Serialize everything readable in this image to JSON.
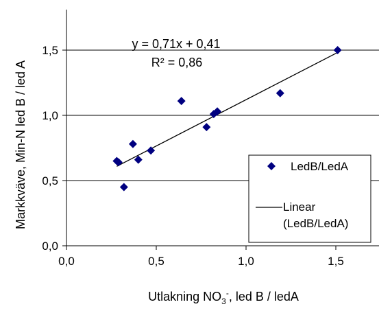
{
  "chart_data": {
    "type": "scatter",
    "title": "",
    "xlabel": {
      "base": "Utlakning NO",
      "sub": "3",
      "sup": "-",
      "rest": ", led B / ledA"
    },
    "ylabel": "Markkväve, Min-N led B / led A",
    "xlim": [
      0,
      1.75
    ],
    "ylim": [
      0,
      1.8
    ],
    "x_ticks": [
      0,
      0.5,
      1.0,
      1.5
    ],
    "x_tick_labels": [
      "0,0",
      "0,5",
      "1,0",
      "1,5"
    ],
    "y_ticks": [
      0,
      0.5,
      1.0,
      1.5
    ],
    "y_tick_labels": [
      "0,0",
      "0,5",
      "1,0",
      "1,5"
    ],
    "grid": "horizontal major gridlines",
    "legend_position": "right",
    "series": [
      {
        "name": "LedB/LedA",
        "marker": "diamond",
        "color": "#000080",
        "points": [
          [
            0.28,
            0.65
          ],
          [
            0.29,
            0.64
          ],
          [
            0.32,
            0.45
          ],
          [
            0.37,
            0.78
          ],
          [
            0.4,
            0.66
          ],
          [
            0.47,
            0.73
          ],
          [
            0.64,
            1.11
          ],
          [
            0.78,
            0.91
          ],
          [
            0.82,
            1.01
          ],
          [
            0.84,
            1.03
          ],
          [
            1.19,
            1.17
          ],
          [
            1.51,
            1.5
          ]
        ]
      }
    ],
    "trendline": {
      "name": "Linear\n(LedB/LedA)",
      "legend_lines": [
        "Linear",
        "(LedB/LedA)"
      ],
      "slope": 0.71,
      "intercept": 0.41,
      "x_range": [
        0.28,
        1.51
      ],
      "color": "#000000",
      "equation": "y = 0,71x + 0,41",
      "r_squared": "R² = 0,86"
    }
  }
}
